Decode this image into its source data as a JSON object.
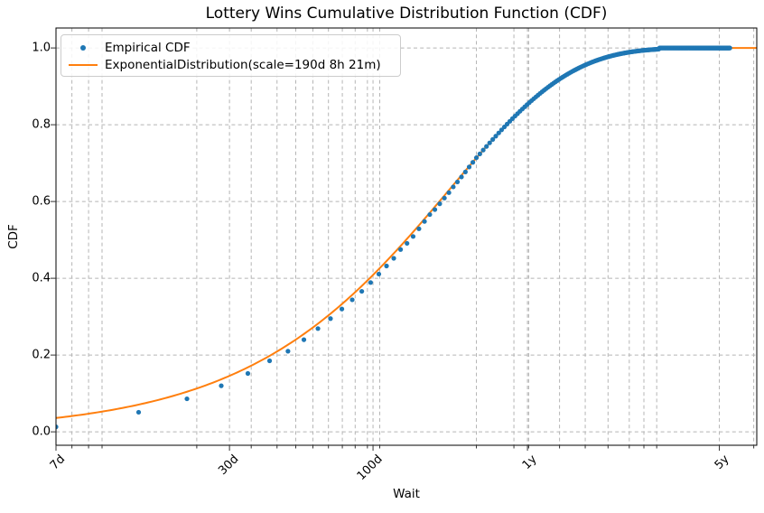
{
  "chart_data": {
    "type": "scatter",
    "title": "Lottery Wins Cumulative Distribution Function (CDF)",
    "xlabel": "Wait",
    "ylabel": "CDF",
    "x_scale": "log",
    "x_unit": "days",
    "xlim_days": [
      7,
      2500
    ],
    "ylim": [
      -0.035,
      1.052
    ],
    "grid": "dashed, major and minor x, major y",
    "legend_position": "upper left",
    "x_major_ticks": [
      {
        "days": 7,
        "label": "7d"
      },
      {
        "days": 30,
        "label": "30d"
      },
      {
        "days": 100,
        "label": "100d"
      },
      {
        "days": 365.25,
        "label": "1y"
      },
      {
        "days": 1826.25,
        "label": "5y"
      }
    ],
    "x_minor_gridline_days": [
      8,
      9.2,
      10.3,
      22.8,
      36,
      44.7,
      52.3,
      60.4,
      68.8,
      77.3,
      86.1,
      95.4,
      105.8,
      238,
      326,
      369,
      478,
      593,
      718,
      858,
      970,
      1080,
      2437
    ],
    "y_ticks": [
      {
        "value": 0.0,
        "label": "0.0"
      },
      {
        "value": 0.2,
        "label": "0.2"
      },
      {
        "value": 0.4,
        "label": "0.4"
      },
      {
        "value": 0.6,
        "label": "0.6"
      },
      {
        "value": 0.8,
        "label": "0.8"
      },
      {
        "value": 1.0,
        "label": "1.0"
      }
    ],
    "series": [
      {
        "name": "Empirical CDF",
        "type": "scatter",
        "color": "#1f77b4",
        "marker": "dot",
        "points_days_cdf": [
          [
            7,
            0.013
          ],
          [
            14,
            0.051
          ],
          [
            21,
            0.086
          ],
          [
            28,
            0.12
          ],
          [
            35,
            0.152
          ],
          [
            42,
            0.185
          ],
          [
            49,
            0.21
          ],
          [
            56,
            0.24
          ],
          [
            63,
            0.269
          ],
          [
            70,
            0.295
          ],
          [
            77,
            0.32
          ],
          [
            84,
            0.344
          ],
          [
            91,
            0.366
          ],
          [
            98,
            0.389
          ],
          [
            105,
            0.411
          ],
          [
            112,
            0.432
          ],
          [
            119,
            0.452
          ],
          [
            126,
            0.475
          ],
          [
            133,
            0.491
          ],
          [
            140,
            0.509
          ],
          [
            147,
            0.529
          ],
          [
            154,
            0.548
          ],
          [
            161,
            0.566
          ],
          [
            168,
            0.579
          ],
          [
            175,
            0.594
          ],
          [
            182,
            0.609
          ],
          [
            189,
            0.623
          ],
          [
            196,
            0.638
          ],
          [
            203,
            0.651
          ],
          [
            210,
            0.664
          ],
          [
            217,
            0.677
          ],
          [
            224,
            0.69
          ],
          [
            231,
            0.702
          ],
          [
            238,
            0.714
          ],
          [
            245,
            0.724
          ],
          [
            252,
            0.734
          ]
        ],
        "dense_tail": {
          "comment": "weekly points hugging the fitted curve until reaching 1.0",
          "start_day": 259,
          "end_day": 1995,
          "step_days": 7,
          "rule": "on_fit_curve",
          "plateau_start_day": 1100,
          "plateau_cdf": 1.0
        }
      },
      {
        "name": "ExponentialDistribution(scale=190d 8h 21m)",
        "type": "line",
        "color": "#ff7f0e",
        "model": "exponential_cdf",
        "scale_label": "190d 8h 21m",
        "scale_days": 190.348,
        "x_range_days": [
          7,
          2500
        ],
        "line_width": 2
      }
    ]
  },
  "colors": {
    "empirical": "#1f77b4",
    "fit": "#ff7f0e",
    "grid": "#b5b5b5",
    "spine": "#000000",
    "legend_border": "#cccccc"
  }
}
